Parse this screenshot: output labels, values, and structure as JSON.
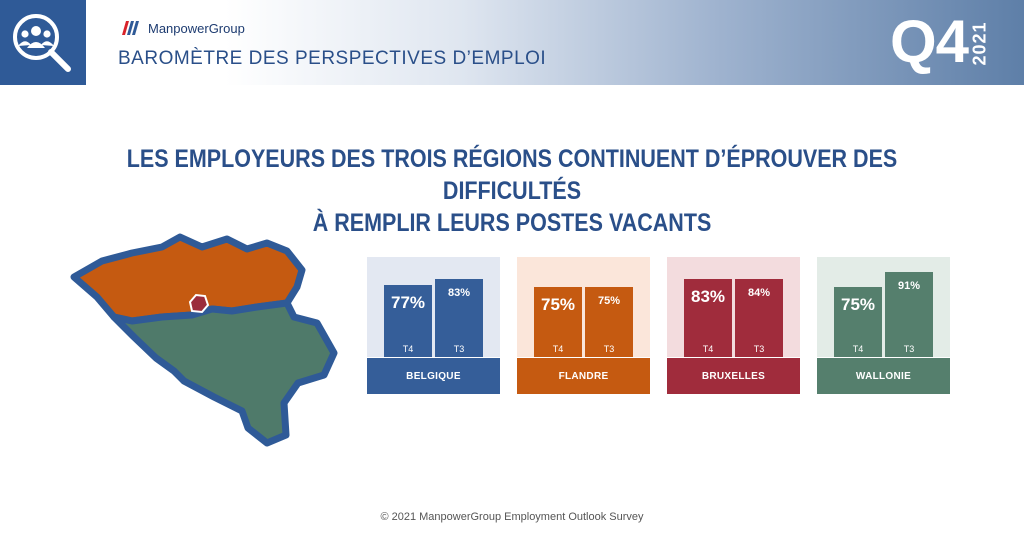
{
  "header": {
    "brand": "ManpowerGroup",
    "title": "BAROMÈTRE DES PERSPECTIVES D’EMPLOI",
    "quarter": "Q4",
    "year": "2021",
    "icon": "search-people-icon"
  },
  "headline": {
    "line1": "LES EMPLOYEURS DES TROIS RÉGIONS CONTINUENT D’ÉPROUVER DES DIFFICULTÉS",
    "line2": "À REMPLIR LEURS POSTES VACANTS"
  },
  "map": {
    "colors": {
      "flandre": "#c55a11",
      "wallonie": "#4f7a6a",
      "bruxelles": "#9b2c3c",
      "outline": "#2f5a97"
    }
  },
  "chart_data": {
    "type": "bar",
    "unit": "%",
    "categories": [
      "T4",
      "T3"
    ],
    "groups": [
      {
        "name": "BELGIQUE",
        "values": [
          77,
          83
        ],
        "labels": [
          "77%",
          "83%"
        ],
        "color": "#355e99",
        "bg": "#e3e8f2"
      },
      {
        "name": "FLANDRE",
        "values": [
          75,
          75
        ],
        "labels": [
          "75%",
          "75%"
        ],
        "color": "#c55a11",
        "bg": "#fbe6da"
      },
      {
        "name": "BRUXELLES",
        "values": [
          83,
          84
        ],
        "labels": [
          "83%",
          "84%"
        ],
        "color": "#a02c3c",
        "bg": "#f3dcde"
      },
      {
        "name": "WALLONIE",
        "values": [
          75,
          91
        ],
        "labels": [
          "75%",
          "91%"
        ],
        "color": "#557f6d",
        "bg": "#e3ece7"
      }
    ]
  },
  "footer": "© 2021 ManpowerGroup Employment Outlook Survey"
}
